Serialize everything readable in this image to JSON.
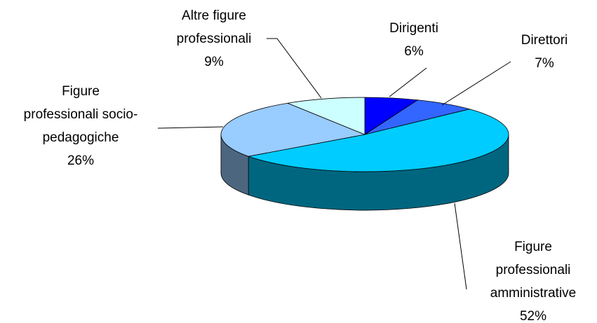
{
  "chart_data": {
    "type": "pie3d",
    "categories": [
      "Dirigenti",
      "Direttori",
      "Figure\nprofessionali\namministrative",
      "Figure\nprofessionali socio-\npedagogiche",
      "Altre figure\nprofessionali"
    ],
    "values": [
      6,
      7,
      52,
      26,
      9
    ],
    "value_labels": [
      "6%",
      "7%",
      "52%",
      "26%",
      "9%"
    ],
    "colors": [
      "#0000ff",
      "#3366ff",
      "#00ccff",
      "#99ccff",
      "#ccffff"
    ]
  }
}
